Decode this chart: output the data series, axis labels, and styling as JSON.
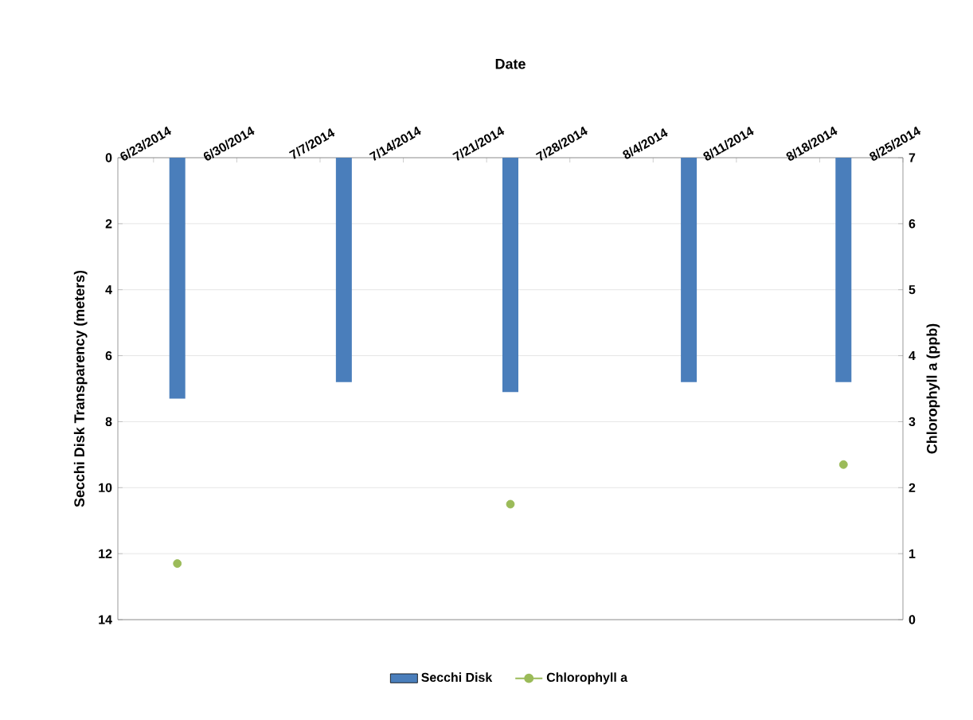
{
  "chart_data": {
    "type": "bar",
    "xlabel": "Date",
    "ylabel": "Secchi Disk Transparency (meters)",
    "y2label": "Chlorophyll a (ppb)",
    "x": [
      "2014-06-25",
      "2014-07-09",
      "2014-07-23",
      "2014-08-07",
      "2014-08-20"
    ],
    "xlim": [
      "2014-06-20",
      "2014-08-25"
    ],
    "xticks": [
      {
        "value": "2014-06-23",
        "label": "6/23/2014"
      },
      {
        "value": "2014-06-30",
        "label": "6/30/2014"
      },
      {
        "value": "2014-07-07",
        "label": "7/7/2014"
      },
      {
        "value": "2014-07-14",
        "label": "7/14/2014"
      },
      {
        "value": "2014-07-21",
        "label": "7/21/2014"
      },
      {
        "value": "2014-07-28",
        "label": "7/28/2014"
      },
      {
        "value": "2014-08-04",
        "label": "8/4/2014"
      },
      {
        "value": "2014-08-11",
        "label": "8/11/2014"
      },
      {
        "value": "2014-08-18",
        "label": "8/18/2014"
      },
      {
        "value": "2014-08-25",
        "label": "8/25/2014"
      }
    ],
    "ylim": [
      14,
      0
    ],
    "yticks": [
      0,
      2,
      4,
      6,
      8,
      10,
      12,
      14
    ],
    "y2lim": [
      0,
      7
    ],
    "y2ticks": [
      0,
      1,
      2,
      3,
      4,
      5,
      6,
      7
    ],
    "series": [
      {
        "name": "Secchi Disk",
        "color": "#4a7ebb",
        "values": [
          7.3,
          6.8,
          7.1,
          6.8,
          6.8
        ]
      },
      {
        "name": "Chlorophyll a",
        "type": "scatter",
        "axis": "y2",
        "color": "#9bbb59",
        "marker": "circle",
        "values": [
          0.85,
          null,
          1.75,
          null,
          2.35
        ]
      }
    ],
    "grid": "y",
    "legend": "bottom"
  }
}
